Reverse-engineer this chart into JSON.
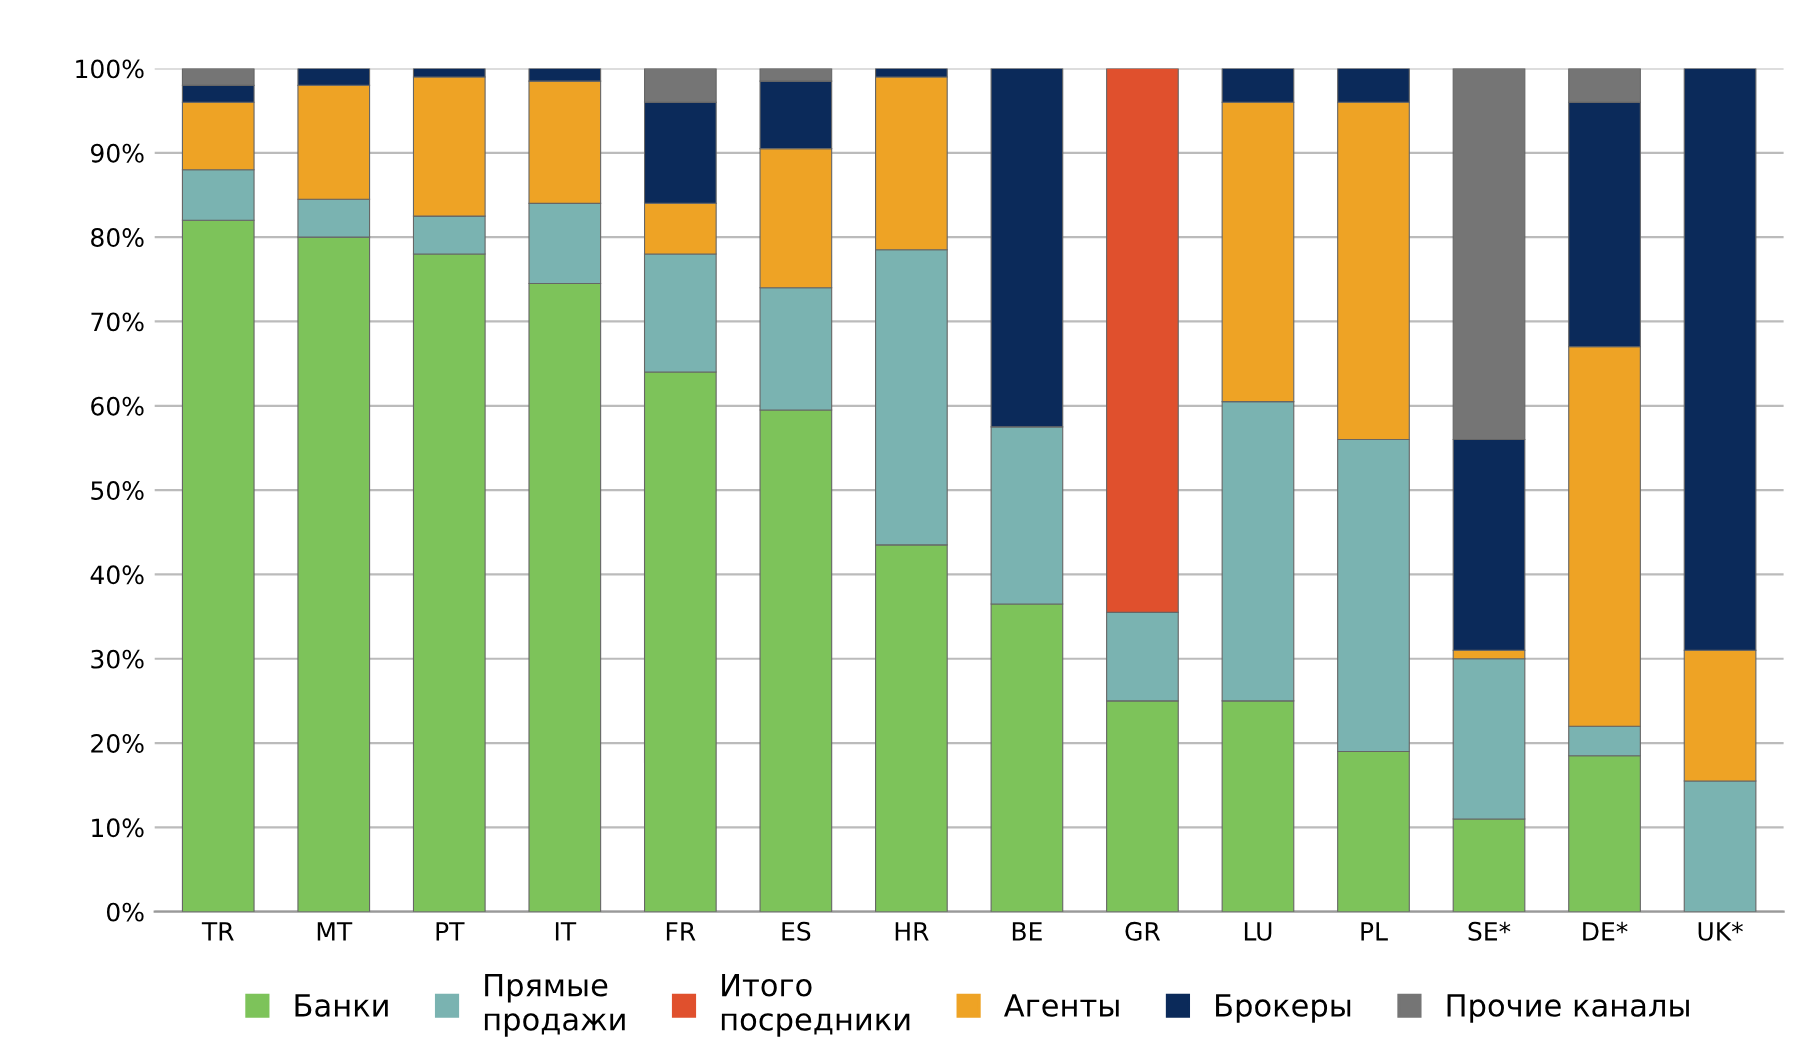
{
  "chart_data": {
    "type": "bar",
    "stacked": true,
    "categories": [
      "TR",
      "MT",
      "PT",
      "IT",
      "FR",
      "ES",
      "HR",
      "BE",
      "GR",
      "LU",
      "PL",
      "SE*",
      "DE*",
      "UK*"
    ],
    "series": [
      {
        "name": "Банки",
        "color": "#7dc35a",
        "values": [
          82,
          80,
          78,
          74.5,
          64,
          59.5,
          43.5,
          36.5,
          25,
          25,
          19,
          11,
          18.5,
          null
        ]
      },
      {
        "name": "Прямые\nпродажи",
        "color": "#7ab3b1",
        "values": [
          6,
          4.5,
          4.5,
          9.5,
          14,
          14.5,
          35,
          21,
          10.5,
          35.5,
          37,
          19,
          3.5,
          15.5
        ]
      },
      {
        "name": "Итого\nпосредники",
        "color": "#e0502d",
        "values": [
          null,
          null,
          null,
          null,
          null,
          null,
          null,
          null,
          64.5,
          null,
          null,
          null,
          null,
          null
        ]
      },
      {
        "name": "Агенты",
        "color": "#eea325",
        "values": [
          8,
          13.5,
          16.5,
          14.5,
          6,
          16.5,
          20.5,
          null,
          null,
          35.5,
          40,
          1,
          45,
          15.5
        ]
      },
      {
        "name": "Брокеры",
        "color": "#0b2a5a",
        "values": [
          2,
          2,
          1,
          1.5,
          12,
          8,
          1,
          42.5,
          null,
          4,
          4,
          25,
          29,
          69
        ]
      },
      {
        "name": "Прочие каналы",
        "color": "#757575",
        "values": [
          2,
          null,
          null,
          null,
          4,
          1.5,
          null,
          null,
          null,
          null,
          null,
          44,
          4,
          null
        ]
      }
    ],
    "ylim": [
      0,
      100
    ],
    "yticks": [
      {
        "value": 0,
        "label": "0%"
      },
      {
        "value": 10,
        "label": "10%"
      },
      {
        "value": 20,
        "label": "20%"
      },
      {
        "value": 30,
        "label": "30%"
      },
      {
        "value": 40,
        "label": "40%"
      },
      {
        "value": 50,
        "label": "50%"
      },
      {
        "value": 60,
        "label": "60%"
      },
      {
        "value": 70,
        "label": "70%"
      },
      {
        "value": 80,
        "label": "80%"
      },
      {
        "value": 90,
        "label": "90%"
      },
      {
        "value": 100,
        "label": "100%"
      }
    ],
    "grid": "y",
    "legend": "bottom"
  }
}
